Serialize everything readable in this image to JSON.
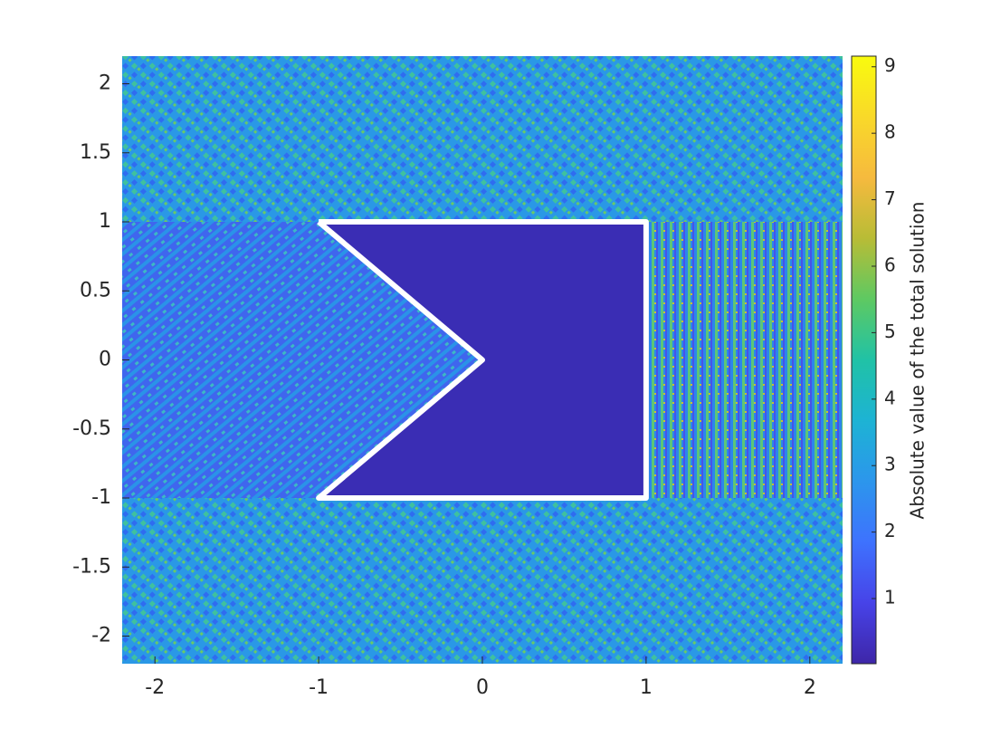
{
  "chart_data": {
    "type": "heatmap",
    "xlim": [
      -2.2,
      2.2
    ],
    "ylim": [
      -2.2,
      2.2
    ],
    "xticks": [
      -2,
      -1,
      0,
      1,
      2
    ],
    "yticks": [
      2,
      1.5,
      1,
      0.5,
      0,
      -0.5,
      -1,
      -1.5,
      -2
    ],
    "colorbar": {
      "label": "Absolute value of the total solution",
      "clim": [
        0.02,
        9.16
      ],
      "ticks": [
        1,
        2,
        3,
        4,
        5,
        6,
        7,
        8,
        9
      ],
      "colormap": [
        "#3e26a8",
        "#4743e8",
        "#3e72fe",
        "#2c96ec",
        "#1db3d4",
        "#20c2a6",
        "#5ec962",
        "#b8bc36",
        "#f6ba3e",
        "#f9d929",
        "#f9fb0e"
      ]
    },
    "obstacle": {
      "x": [
        -1,
        0,
        -1,
        1,
        1,
        -1
      ],
      "y": [
        1,
        0,
        -1,
        -1,
        1,
        1
      ],
      "color": "#ffffff"
    }
  }
}
